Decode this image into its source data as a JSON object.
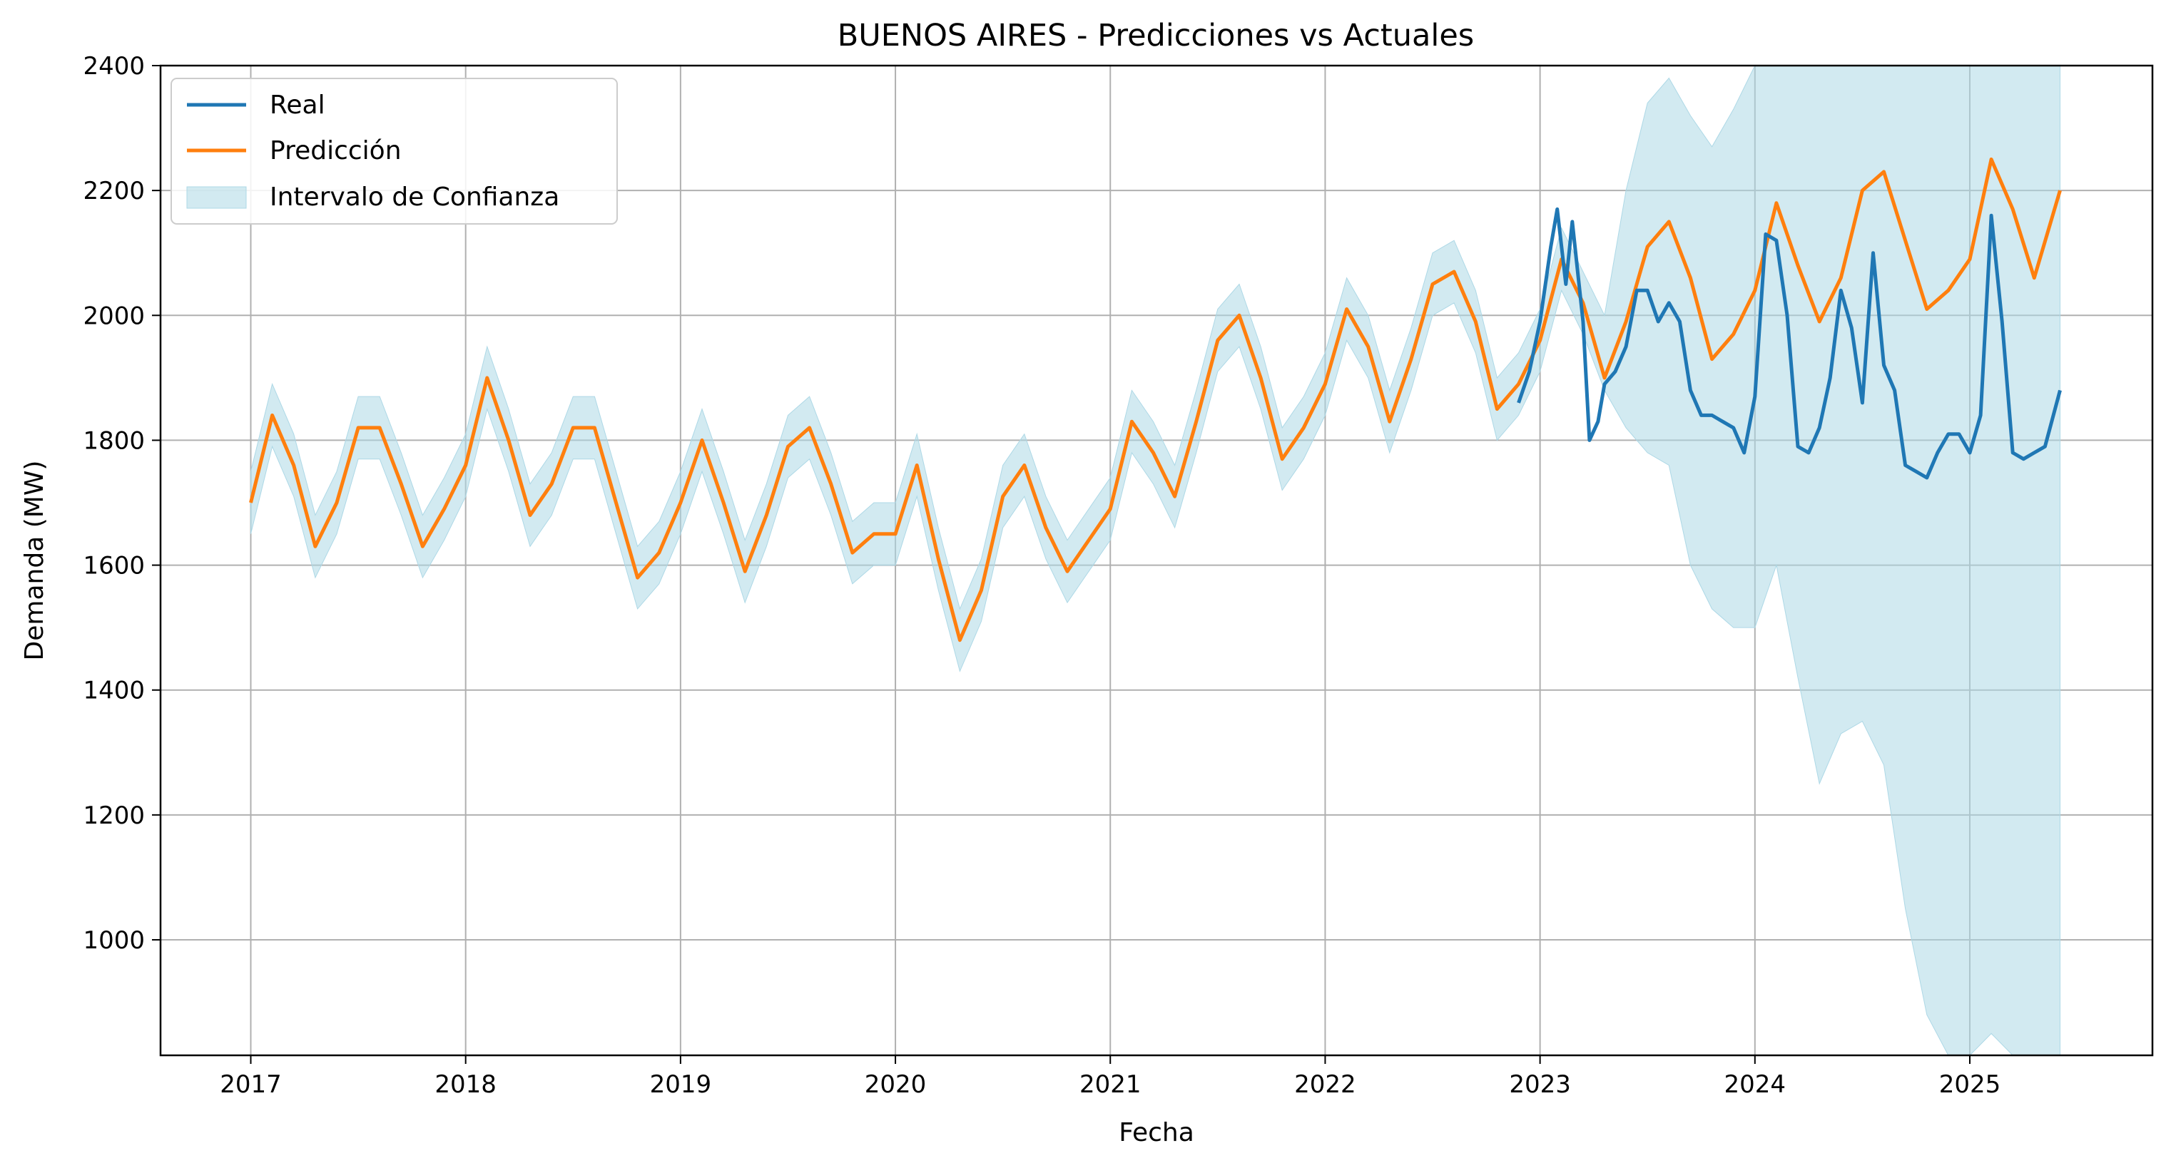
{
  "chart_data": {
    "type": "line",
    "title": "BUENOS AIRES - Predicciones vs Actuales",
    "xlabel": "Fecha",
    "ylabel": "Demanda (MW)",
    "xlim": [
      2016.58,
      2025.85
    ],
    "ylim": [
      815,
      2400
    ],
    "xticks": [
      2017,
      2018,
      2019,
      2020,
      2021,
      2022,
      2023,
      2024,
      2025
    ],
    "yticks": [
      1000,
      1200,
      1400,
      1600,
      1800,
      2000,
      2200,
      2400
    ],
    "grid": true,
    "legend_position": "top-left",
    "legend": [
      "Real",
      "Predicción",
      "Intervalo de Confianza"
    ],
    "colors": {
      "real": "#1f77b4",
      "prediccion": "#ff7f0e",
      "intervalo": "#add8e6"
    },
    "series": [
      {
        "name": "Real",
        "x": [
          2022.9,
          2022.95,
          2023.0,
          2023.05,
          2023.08,
          2023.12,
          2023.15,
          2023.2,
          2023.23,
          2023.27,
          2023.3,
          2023.35,
          2023.4,
          2023.45,
          2023.5,
          2023.55,
          2023.6,
          2023.65,
          2023.7,
          2023.75,
          2023.8,
          2023.85,
          2023.9,
          2023.95,
          2024.0,
          2024.05,
          2024.1,
          2024.15,
          2024.2,
          2024.25,
          2024.3,
          2024.35,
          2024.4,
          2024.45,
          2024.5,
          2024.55,
          2024.6,
          2024.65,
          2024.7,
          2024.75,
          2024.8,
          2024.85,
          2024.9,
          2024.95,
          2025.0,
          2025.05,
          2025.1,
          2025.15,
          2025.2,
          2025.25,
          2025.3,
          2025.35,
          2025.42
        ],
        "y": [
          1860,
          1910,
          1990,
          2110,
          2170,
          2050,
          2150,
          1990,
          1800,
          1830,
          1890,
          1910,
          1950,
          2040,
          2040,
          1990,
          2020,
          1990,
          1880,
          1840,
          1840,
          1830,
          1820,
          1780,
          1870,
          2130,
          2120,
          2000,
          1790,
          1780,
          1820,
          1900,
          2040,
          1980,
          1860,
          2100,
          1920,
          1880,
          1760,
          1750,
          1740,
          1780,
          1810,
          1810,
          1780,
          1840,
          2160,
          1990,
          1780,
          1770,
          1780,
          1790,
          1880
        ]
      },
      {
        "name": "Predicción",
        "x": [
          2017.0,
          2017.1,
          2017.2,
          2017.3,
          2017.4,
          2017.5,
          2017.6,
          2017.7,
          2017.8,
          2017.9,
          2018.0,
          2018.1,
          2018.2,
          2018.3,
          2018.4,
          2018.5,
          2018.6,
          2018.7,
          2018.8,
          2018.9,
          2019.0,
          2019.1,
          2019.2,
          2019.3,
          2019.4,
          2019.5,
          2019.6,
          2019.7,
          2019.8,
          2019.9,
          2020.0,
          2020.1,
          2020.2,
          2020.3,
          2020.4,
          2020.5,
          2020.6,
          2020.7,
          2020.8,
          2020.9,
          2021.0,
          2021.1,
          2021.2,
          2021.3,
          2021.4,
          2021.5,
          2021.6,
          2021.7,
          2021.8,
          2021.9,
          2022.0,
          2022.1,
          2022.2,
          2022.3,
          2022.4,
          2022.5,
          2022.6,
          2022.7,
          2022.8,
          2022.9,
          2023.0,
          2023.1,
          2023.2,
          2023.3,
          2023.4,
          2023.5,
          2023.6,
          2023.7,
          2023.8,
          2023.9,
          2024.0,
          2024.1,
          2024.2,
          2024.3,
          2024.4,
          2024.5,
          2024.6,
          2024.7,
          2024.8,
          2024.9,
          2025.0,
          2025.1,
          2025.2,
          2025.3,
          2025.42
        ],
        "y": [
          1700,
          1840,
          1760,
          1630,
          1700,
          1820,
          1820,
          1730,
          1630,
          1690,
          1760,
          1900,
          1800,
          1680,
          1730,
          1820,
          1820,
          1700,
          1580,
          1620,
          1700,
          1800,
          1700,
          1590,
          1680,
          1790,
          1820,
          1730,
          1620,
          1650,
          1650,
          1760,
          1610,
          1480,
          1560,
          1710,
          1760,
          1660,
          1590,
          1640,
          1690,
          1830,
          1780,
          1710,
          1830,
          1960,
          2000,
          1900,
          1770,
          1820,
          1890,
          2010,
          1950,
          1830,
          1930,
          2050,
          2070,
          1990,
          1850,
          1890,
          1960,
          2090,
          2020,
          1900,
          1990,
          2110,
          2150,
          2060,
          1930,
          1970,
          2040,
          2180,
          2080,
          1990,
          2060,
          2200,
          2230,
          2120,
          2010,
          2040,
          2090,
          2250,
          2170,
          2060,
          2200
        ]
      }
    ],
    "confidence_interval": {
      "name": "Intervalo de Confianza",
      "x": [
        2017.0,
        2017.1,
        2017.2,
        2017.3,
        2017.4,
        2017.5,
        2017.6,
        2017.7,
        2017.8,
        2017.9,
        2018.0,
        2018.1,
        2018.2,
        2018.3,
        2018.4,
        2018.5,
        2018.6,
        2018.7,
        2018.8,
        2018.9,
        2019.0,
        2019.1,
        2019.2,
        2019.3,
        2019.4,
        2019.5,
        2019.6,
        2019.7,
        2019.8,
        2019.9,
        2020.0,
        2020.1,
        2020.2,
        2020.3,
        2020.4,
        2020.5,
        2020.6,
        2020.7,
        2020.8,
        2020.9,
        2021.0,
        2021.1,
        2021.2,
        2021.3,
        2021.4,
        2021.5,
        2021.6,
        2021.7,
        2021.8,
        2021.9,
        2022.0,
        2022.1,
        2022.2,
        2022.3,
        2022.4,
        2022.5,
        2022.6,
        2022.7,
        2022.8,
        2022.9,
        2023.0,
        2023.1,
        2023.2,
        2023.3,
        2023.4,
        2023.5,
        2023.6,
        2023.7,
        2023.8,
        2023.9,
        2024.0,
        2024.1,
        2024.2,
        2024.3,
        2024.4,
        2024.5,
        2024.6,
        2024.7,
        2024.8,
        2024.9,
        2025.0,
        2025.1,
        2025.2,
        2025.3,
        2025.42
      ],
      "upper": [
        1750,
        1890,
        1810,
        1680,
        1750,
        1870,
        1870,
        1780,
        1680,
        1740,
        1810,
        1950,
        1850,
        1730,
        1780,
        1870,
        1870,
        1750,
        1630,
        1670,
        1750,
        1850,
        1750,
        1640,
        1730,
        1840,
        1870,
        1780,
        1670,
        1700,
        1700,
        1810,
        1660,
        1530,
        1610,
        1760,
        1810,
        1710,
        1640,
        1690,
        1740,
        1880,
        1830,
        1760,
        1880,
        2010,
        2050,
        1950,
        1820,
        1870,
        1940,
        2060,
        2000,
        1880,
        1980,
        2100,
        2120,
        2040,
        1900,
        1940,
        2010,
        2140,
        2070,
        2000,
        2200,
        2340,
        2380,
        2320,
        2270,
        2330,
        2400,
        2400,
        2400,
        2400,
        2400,
        2400,
        2400,
        2400,
        2400,
        2400,
        2400,
        2400,
        2400,
        2400,
        2400
      ],
      "lower": [
        1650,
        1790,
        1710,
        1580,
        1650,
        1770,
        1770,
        1680,
        1580,
        1640,
        1710,
        1850,
        1750,
        1630,
        1680,
        1770,
        1770,
        1650,
        1530,
        1570,
        1650,
        1750,
        1650,
        1540,
        1630,
        1740,
        1770,
        1680,
        1570,
        1600,
        1600,
        1710,
        1560,
        1430,
        1510,
        1660,
        1710,
        1610,
        1540,
        1590,
        1640,
        1780,
        1730,
        1660,
        1780,
        1910,
        1950,
        1850,
        1720,
        1770,
        1840,
        1960,
        1900,
        1780,
        1880,
        2000,
        2020,
        1940,
        1800,
        1840,
        1910,
        2040,
        1970,
        1880,
        1820,
        1780,
        1760,
        1600,
        1530,
        1500,
        1500,
        1600,
        1420,
        1250,
        1330,
        1350,
        1280,
        1050,
        880,
        815,
        815,
        850,
        815,
        815,
        815
      ]
    }
  }
}
